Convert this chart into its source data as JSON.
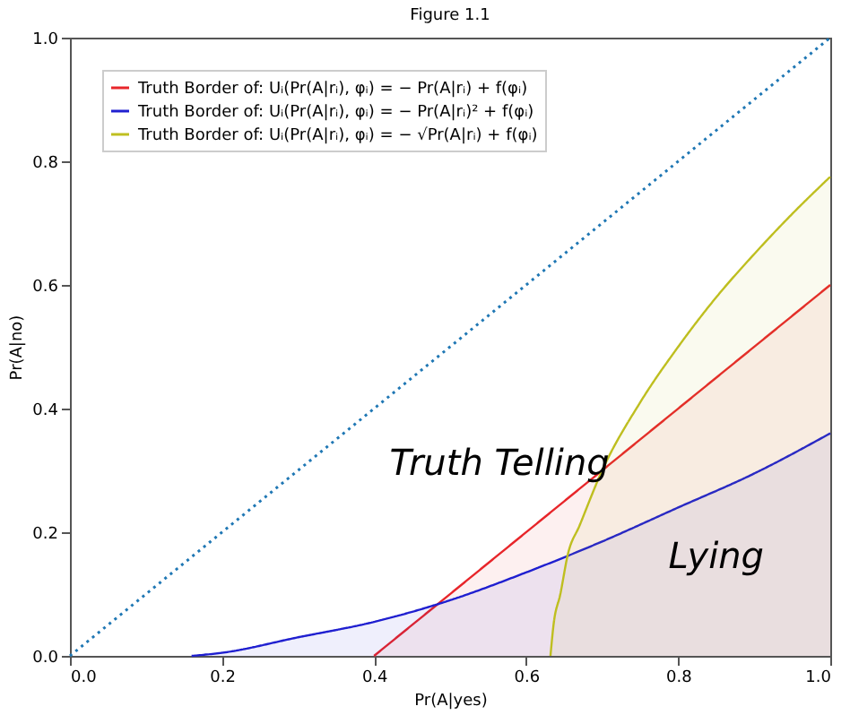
{
  "chart_data": {
    "type": "line",
    "title": "Figure 1.1",
    "xlabel": "Pr(A|yes)",
    "ylabel": "Pr(A|no)",
    "series": [
      {
        "name": "Truth Border of: Uᵢ(Pr(A|rᵢ), φᵢ) = − Pr(A|rᵢ) + f(φᵢ)",
        "type": "area",
        "color": "#e8262b",
        "x": [
          0.4,
          1.0
        ],
        "values": [
          0.0,
          0.6
        ]
      },
      {
        "name": "Truth Border of: Uᵢ(Pr(A|rᵢ), φᵢ) = − Pr(A|rᵢ)² + f(φᵢ)",
        "type": "area",
        "color": "#2020d0",
        "x": [
          0.16,
          0.2,
          0.3,
          0.4,
          0.5,
          0.6,
          0.7,
          0.8,
          0.9,
          1.0
        ],
        "values": [
          0.0,
          0.005,
          0.03,
          0.055,
          0.09,
          0.135,
          0.185,
          0.24,
          0.295,
          0.36
        ]
      },
      {
        "name": "Truth Border of: Uᵢ(Pr(A|rᵢ), φᵢ) = − √Pr(A|rᵢ) + f(φᵢ)",
        "type": "area",
        "color": "#bfbf20",
        "x": [
          0.632,
          0.636,
          0.645,
          0.655,
          0.67,
          0.7,
          0.75,
          0.8,
          0.85,
          0.9,
          0.95,
          1.0
        ],
        "values": [
          0.0,
          0.05,
          0.1,
          0.165,
          0.21,
          0.3,
          0.41,
          0.5,
          0.58,
          0.65,
          0.715,
          0.775
        ]
      },
      {
        "color": "#1f77b4",
        "line_style": "dotted",
        "x": [
          0.0,
          1.0
        ],
        "values": [
          0.0,
          1.0
        ]
      }
    ],
    "xlim": [
      0,
      1
    ],
    "ylim": [
      0,
      1
    ],
    "xticks": [
      {
        "value": 0,
        "label": "0.0"
      },
      0.2,
      0.4,
      0.6,
      0.8,
      {
        "value": 1,
        "label": "1.0"
      }
    ],
    "yticks": [
      {
        "value": 0,
        "label": "0.0"
      },
      0.2,
      0.4,
      0.6,
      0.8,
      {
        "value": 1,
        "label": "1.0"
      }
    ],
    "annotations": [
      "Truth Telling",
      "Lying"
    ],
    "legend": "top left",
    "grid": false
  }
}
